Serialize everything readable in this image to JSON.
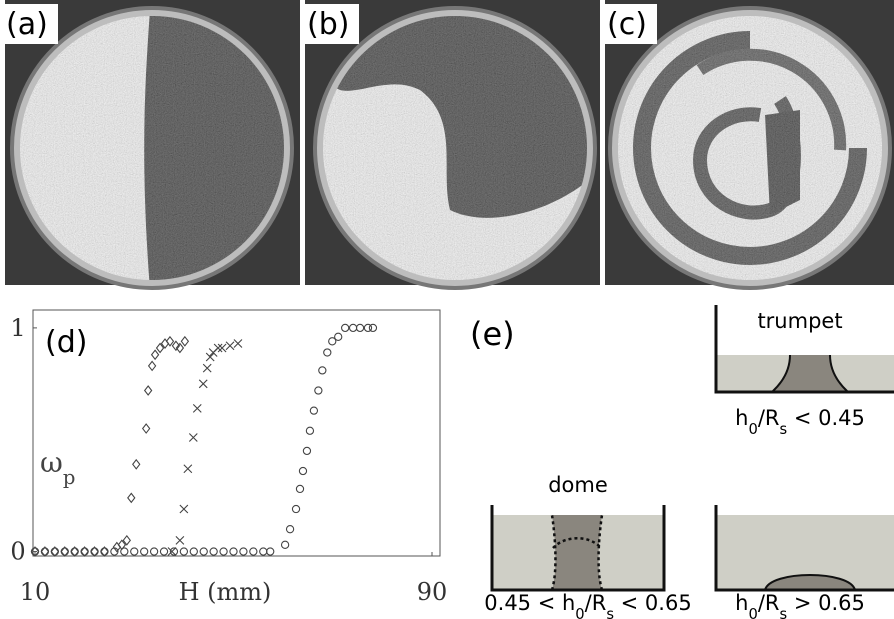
{
  "panels": {
    "a": "(a)",
    "b": "(b)",
    "c": "(c)"
  },
  "chart_data": {
    "type": "scatter",
    "label": "(d)",
    "xlabel": "H (mm)",
    "ylabel": [
      "ω",
      "p"
    ],
    "xlim": [
      10,
      90
    ],
    "xticks": [
      10,
      90
    ],
    "ylim": [
      -0.02,
      1.08
    ],
    "yticks": [
      0,
      1
    ],
    "series": [
      {
        "marker": "diamond",
        "color": "#444",
        "x": [
          10,
          12,
          14,
          16,
          18,
          20,
          22,
          24,
          26.5,
          27.5,
          28.5,
          29.4,
          30.4,
          32.4,
          32.8,
          33.6,
          34.2,
          35.2,
          36.2,
          37.2,
          38.4,
          39.2,
          40.2
        ],
        "values": [
          0,
          0,
          0,
          0,
          0,
          0,
          0,
          0,
          0.02,
          0.03,
          0.05,
          0.24,
          0.39,
          0.55,
          0.72,
          0.83,
          0.88,
          0.91,
          0.93,
          0.94,
          0.92,
          0.91,
          0.94
        ]
      },
      {
        "marker": "cross",
        "color": "#444",
        "x": [
          37.6,
          39.2,
          40,
          40.8,
          41.9,
          42.7,
          43.9,
          44.7,
          45.3,
          45.9,
          46.9,
          47.7,
          49.3,
          50.9
        ],
        "values": [
          0,
          0.05,
          0.19,
          0.37,
          0.51,
          0.64,
          0.75,
          0.82,
          0.87,
          0.89,
          0.91,
          0.91,
          0.92,
          0.93
        ]
      },
      {
        "marker": "circle",
        "color": "#444",
        "x": [
          10,
          12,
          14,
          16,
          18,
          20,
          22,
          24,
          26,
          28,
          30,
          32,
          34,
          36,
          38,
          40,
          42,
          44,
          46,
          48,
          50,
          52,
          54,
          56,
          57.4,
          60.4,
          61.4,
          62.6,
          63.4,
          64,
          64.8,
          65.4,
          66.2,
          67.1,
          67.9,
          68.9,
          69.9,
          71.1,
          72.5,
          74.1,
          75.5,
          77.1,
          78.1
        ],
        "values": [
          0,
          0,
          0,
          0,
          0,
          0,
          0,
          0,
          0,
          0,
          0,
          0,
          0,
          0,
          0,
          0,
          0,
          0,
          0,
          0,
          0,
          0,
          0,
          0,
          0,
          0.03,
          0.1,
          0.19,
          0.28,
          0.36,
          0.45,
          0.54,
          0.63,
          0.72,
          0.81,
          0.89,
          0.94,
          0.96,
          1,
          1,
          1,
          1,
          1
        ]
      }
    ]
  },
  "diagram": {
    "label": "(e)",
    "trumpet": {
      "title": "trumpet",
      "condition": [
        "h",
        "0",
        "/R",
        "s",
        " < 0.45"
      ]
    },
    "dome": {
      "title": "dome",
      "condition": [
        "0.45 < h",
        "0",
        "/R",
        "s",
        " < 0.65"
      ]
    },
    "cap": {
      "condition": [
        "h",
        "0",
        "/R",
        "s",
        " > 0.65"
      ]
    }
  }
}
